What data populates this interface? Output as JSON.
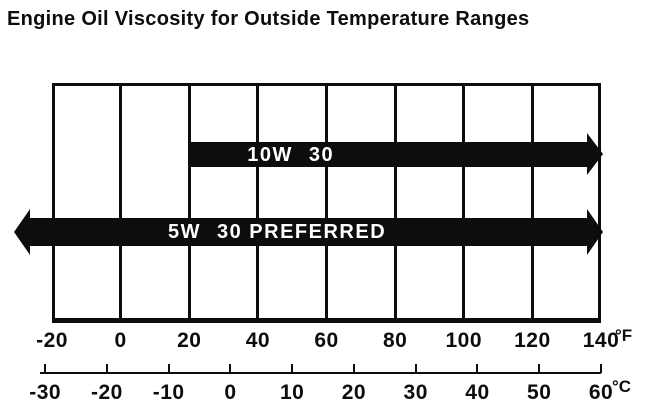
{
  "title": "Engine Oil Viscosity for Outside Temperature Ranges",
  "chart_data": {
    "type": "bar",
    "subtype": "horizontal-temperature-range-bars",
    "title": "Engine Oil Viscosity for Outside Temperature Ranges",
    "grid": true,
    "legend": "none",
    "axes": {
      "fahrenheit": {
        "unit": "°F",
        "position": "bottom",
        "range": [
          -20,
          140
        ],
        "ticks": [
          -20,
          0,
          20,
          40,
          60,
          80,
          100,
          120,
          140
        ]
      },
      "celsius": {
        "unit": "°C",
        "position": "bottom-secondary",
        "range": [
          -30,
          60
        ],
        "ticks": [
          -30,
          -20,
          -10,
          0,
          10,
          20,
          30,
          40,
          50,
          60
        ]
      }
    },
    "bars": [
      {
        "name": "10W-30",
        "label": "10W 30",
        "label_parts": [
          "10W",
          "30"
        ],
        "min_f": 20,
        "max_f": 140,
        "open_left": false,
        "open_right": true
      },
      {
        "name": "5W-30",
        "label": "5W 30 PREFERRED",
        "label_parts": [
          "5W",
          "30 PREFERRED"
        ],
        "min_f": -20,
        "max_f": 140,
        "open_left": true,
        "open_right": true
      }
    ],
    "colors": {
      "bar": "#0d0d0d",
      "bar_text": "#ffffff",
      "line": "#0d0d0d",
      "background": "#ffffff"
    }
  }
}
